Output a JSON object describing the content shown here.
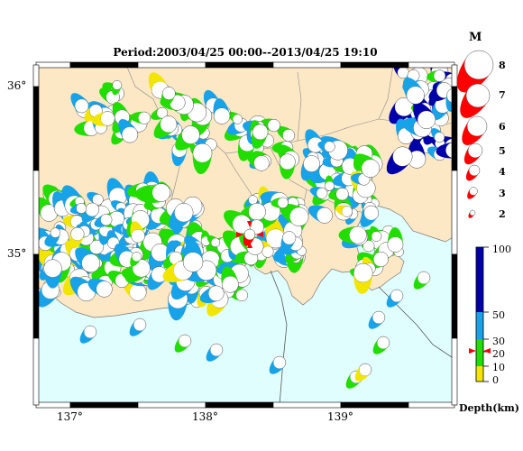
{
  "title": "Period:2003/04/25 00:00--2013/04/25 19:10",
  "lat_labels": [
    "36°",
    "35°"
  ],
  "lon_labels": [
    "137°",
    "138°",
    "139°"
  ],
  "magnitude_legend": {
    "heading": "M",
    "labels": [
      "8",
      "7",
      "6",
      "5",
      "4",
      "3",
      "2"
    ],
    "color": "#ff0000"
  },
  "depth_legend": {
    "labels": [
      "100",
      "50",
      "30",
      "20",
      "10",
      "0"
    ],
    "unit": "Depth(km)",
    "colors": [
      "#f2e600",
      "#22dd00",
      "#18a2e8",
      "#0000aa"
    ]
  },
  "colors": {
    "land": "#fce8c5",
    "sea": "#e1feff",
    "mainshock": "#ff0000",
    "frame": "#000000"
  }
}
